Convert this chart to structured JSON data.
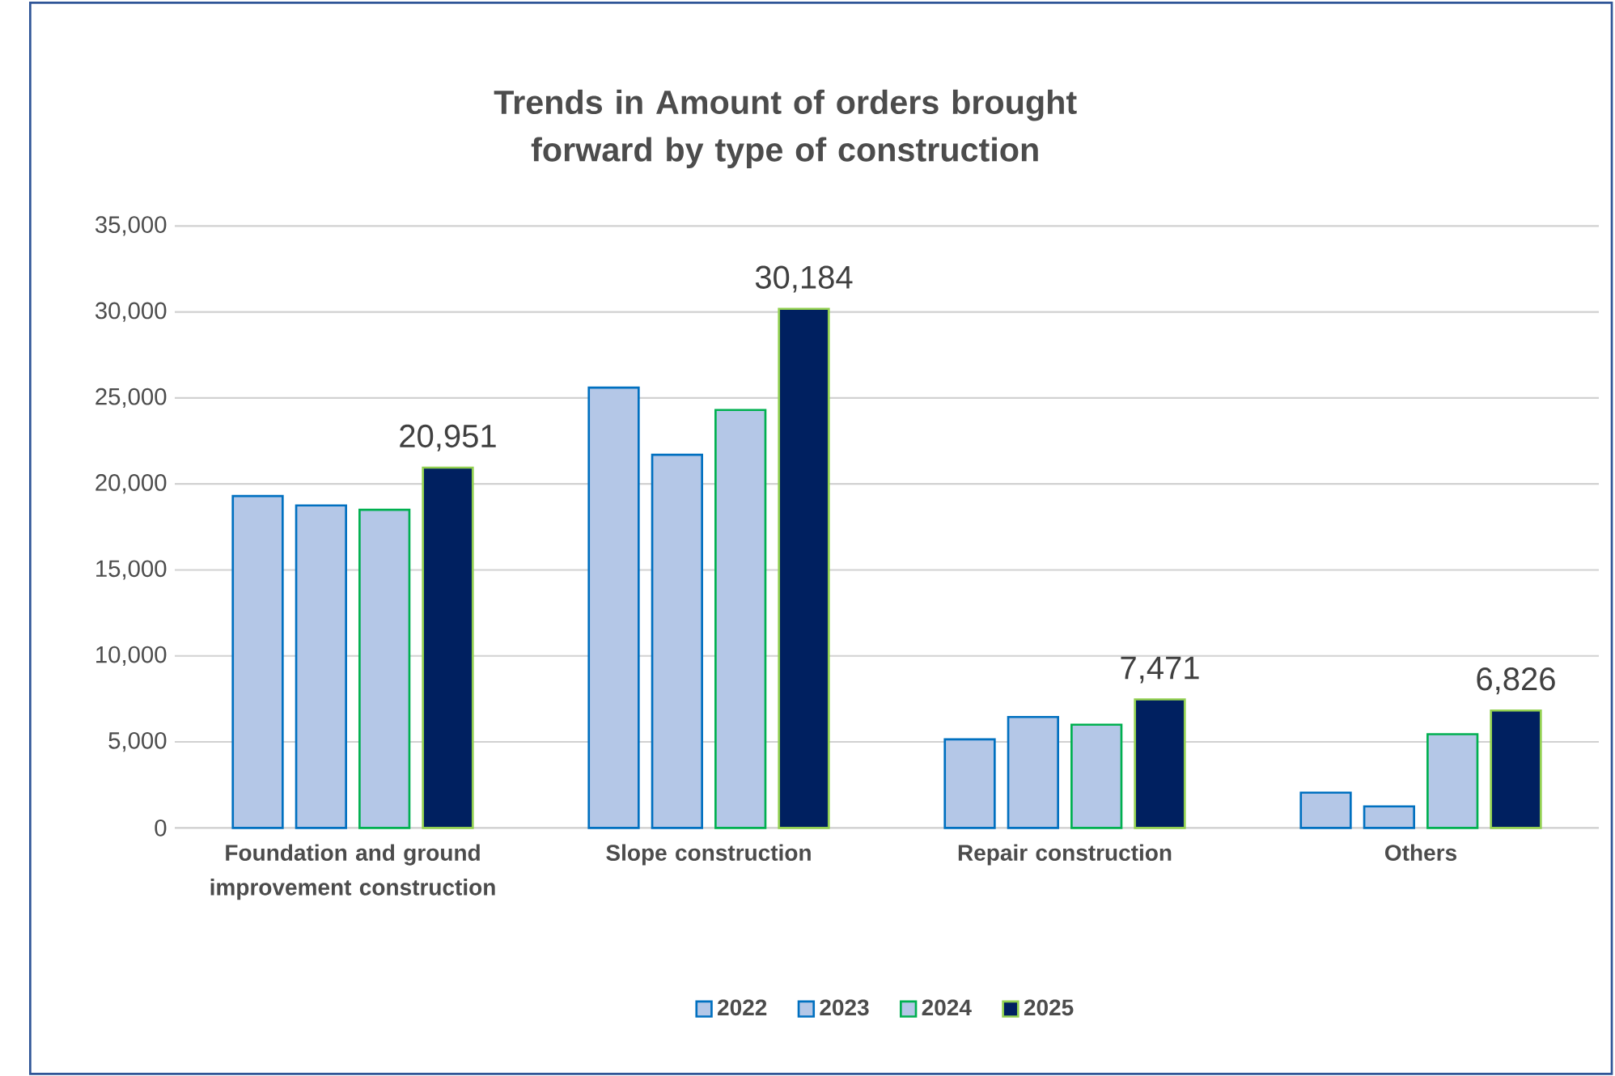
{
  "chart_data": {
    "type": "bar",
    "title": "Trends in Amount of orders brought forward by type of construction",
    "categories": [
      "Foundation and ground improvement construction",
      "Slope construction",
      "Repair construction",
      "Others"
    ],
    "series": [
      {
        "name": "2022",
        "color": "#b4c7e7",
        "values": [
          19300,
          25600,
          5150,
          2050
        ]
      },
      {
        "name": "2023",
        "color": "#b4c7e7",
        "values": [
          18750,
          21700,
          6450,
          1250
        ]
      },
      {
        "name": "2024",
        "color": "#b4c7e7",
        "values": [
          18500,
          24300,
          6000,
          5450
        ]
      },
      {
        "name": "2025",
        "color": "#002060",
        "values": [
          20951,
          30184,
          7471,
          6826
        ],
        "value_labels": [
          "20,951",
          "30,184",
          "7,471",
          "6,826"
        ]
      }
    ],
    "ylim": [
      0,
      35000
    ],
    "yticks": [
      {
        "value": 0,
        "label": "0"
      },
      {
        "value": 5000,
        "label": "5,000"
      },
      {
        "value": 10000,
        "label": "10,000"
      },
      {
        "value": 15000,
        "label": "15,000"
      },
      {
        "value": 20000,
        "label": "20,000"
      },
      {
        "value": 25000,
        "label": "25,000"
      },
      {
        "value": 30000,
        "label": "30,000"
      },
      {
        "value": 35000,
        "label": "35,000"
      }
    ],
    "grid": "y",
    "legend": "bottom"
  }
}
